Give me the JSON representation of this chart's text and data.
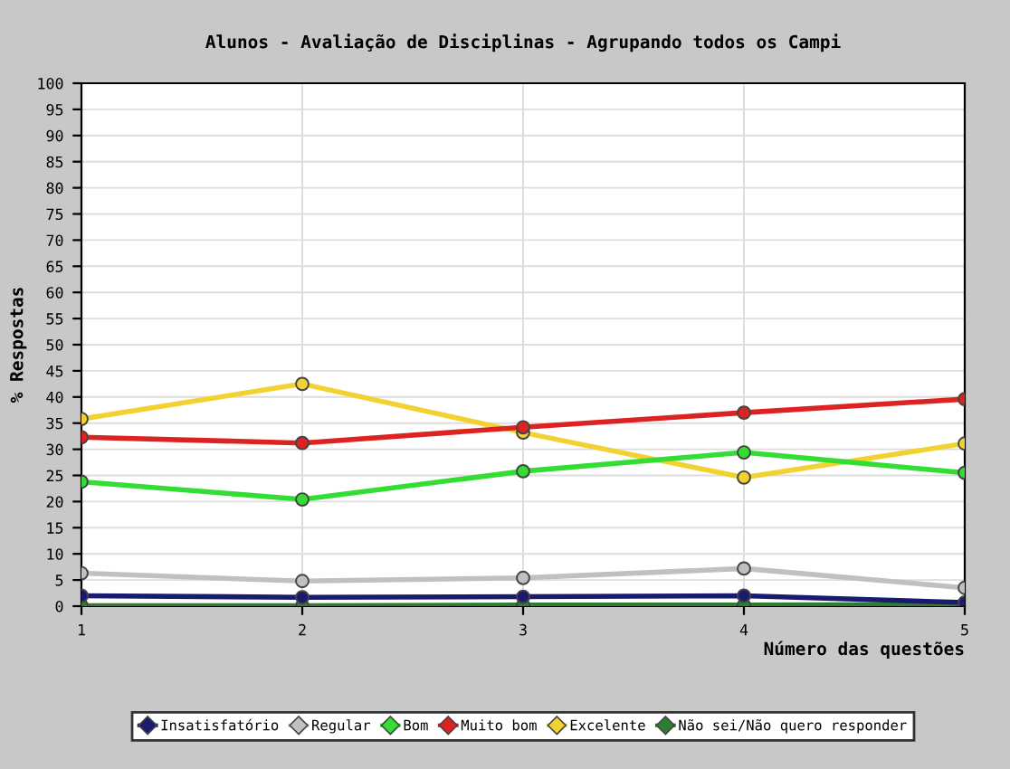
{
  "chart_data": {
    "type": "line",
    "title": "Alunos - Avaliação de Disciplinas - Agrupando todos os Campi",
    "xlabel": "Número das questões",
    "ylabel": "% Respostas",
    "x": [
      1,
      2,
      3,
      4,
      5
    ],
    "xlim": [
      1,
      5
    ],
    "xticks": [
      1,
      2,
      3,
      4,
      5
    ],
    "ylim": [
      0,
      100
    ],
    "yticks": [
      0,
      5,
      10,
      15,
      20,
      25,
      30,
      35,
      40,
      45,
      50,
      55,
      60,
      65,
      70,
      75,
      80,
      85,
      90,
      95,
      100
    ],
    "grid": true,
    "legend": "bottom",
    "marker": "circle",
    "line_style": "solid",
    "series": [
      {
        "name": "Insatisfatório",
        "color": "#1a1a6e",
        "values": [
          2,
          1.7,
          1.8,
          2,
          0.7
        ]
      },
      {
        "name": "Regular",
        "color": "#c0c0c0",
        "values": [
          6.3,
          4.8,
          5.4,
          7.2,
          3.5
        ]
      },
      {
        "name": "Bom",
        "color": "#33dd33",
        "values": [
          23.8,
          20.4,
          25.8,
          29.4,
          25.5
        ]
      },
      {
        "name": "Muito bom",
        "color": "#dd2222",
        "values": [
          32.3,
          31.2,
          34.2,
          37,
          39.6
        ]
      },
      {
        "name": "Excelente",
        "color": "#f2d230",
        "values": [
          35.8,
          42.5,
          33.2,
          24.6,
          31.1
        ]
      },
      {
        "name": "Não sei/Não quero responder",
        "color": "#2e7d32",
        "values": [
          0.1,
          0.1,
          0.2,
          0.2,
          0.3
        ]
      }
    ]
  }
}
